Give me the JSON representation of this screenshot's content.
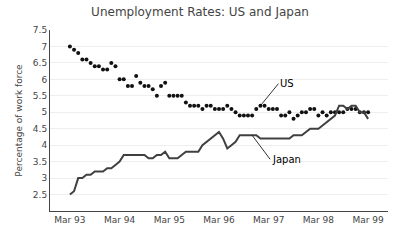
{
  "chart_data": {
    "type": "line",
    "title": "Unemployment Rates: US and Japan",
    "ylabel": "Percentage of work force",
    "categories": [
      "Mar 93",
      null,
      null,
      null,
      null,
      null,
      null,
      null,
      null,
      null,
      null,
      null,
      "Mar 94",
      null,
      null,
      null,
      null,
      null,
      null,
      null,
      null,
      null,
      null,
      null,
      "Mar 95",
      null,
      null,
      null,
      null,
      null,
      null,
      null,
      null,
      null,
      null,
      null,
      "Mar 96",
      null,
      null,
      null,
      null,
      null,
      null,
      null,
      null,
      null,
      null,
      null,
      "Mar 97",
      null,
      null,
      null,
      null,
      null,
      null,
      null,
      null,
      null,
      null,
      null,
      "Mar 98",
      null,
      null,
      null,
      null,
      null,
      null,
      null,
      null,
      null,
      null,
      null,
      "Mar 99"
    ],
    "series": [
      {
        "type": "scatter",
        "marker": "dot",
        "color": "#111111",
        "values": [
          7.0,
          6.9,
          6.8,
          6.6,
          6.6,
          6.5,
          6.4,
          6.4,
          6.3,
          6.3,
          6.5,
          6.4,
          6.0,
          6.0,
          5.8,
          5.8,
          6.1,
          5.9,
          5.8,
          5.8,
          5.7,
          5.5,
          5.8,
          5.9,
          5.5,
          5.5,
          5.5,
          5.5,
          5.3,
          5.2,
          5.2,
          5.2,
          5.1,
          5.2,
          5.2,
          5.1,
          5.1,
          5.1,
          5.2,
          5.1,
          5.0,
          4.9,
          4.9,
          4.9,
          4.9,
          5.1,
          5.2,
          5.2,
          5.1,
          5.1,
          5.1,
          4.9,
          4.9,
          5.0,
          4.8,
          4.9,
          5.0,
          5.0,
          5.1,
          5.1,
          4.9,
          5.0,
          4.9,
          5.0,
          5.0,
          5.0,
          5.0,
          5.1,
          5.1,
          5.1,
          5.0,
          5.0,
          5.0
        ]
      },
      {
        "type": "line",
        "line_style": "solid",
        "color": "#404040",
        "values": [
          2.5,
          2.6,
          3.0,
          3.0,
          3.1,
          3.1,
          3.2,
          3.2,
          3.2,
          3.3,
          3.3,
          3.4,
          3.5,
          3.7,
          3.7,
          3.7,
          3.7,
          3.7,
          3.7,
          3.6,
          3.6,
          3.7,
          3.7,
          3.8,
          3.6,
          3.6,
          3.6,
          3.7,
          3.8,
          3.8,
          3.8,
          3.8,
          4.0,
          4.1,
          4.2,
          4.3,
          4.4,
          4.2,
          3.9,
          4.0,
          4.1,
          4.3,
          4.3,
          4.3,
          4.3,
          4.3,
          4.2,
          4.2,
          4.2,
          4.2,
          4.2,
          4.2,
          4.2,
          4.2,
          4.3,
          4.3,
          4.3,
          4.4,
          4.5,
          4.5,
          4.5,
          4.6,
          4.7,
          4.8,
          4.9,
          5.2,
          5.2,
          5.1,
          5.2,
          5.2,
          5.0,
          5.0,
          4.8
        ]
      }
    ],
    "annotations": [
      "US",
      "Japan"
    ],
    "ylim": [
      2.0,
      7.5
    ],
    "yticks": [
      2.5,
      3.0,
      3.5,
      4.0,
      4.5,
      5.0,
      5.5,
      6.0,
      6.5,
      7.0,
      7.5
    ],
    "grid": true
  }
}
